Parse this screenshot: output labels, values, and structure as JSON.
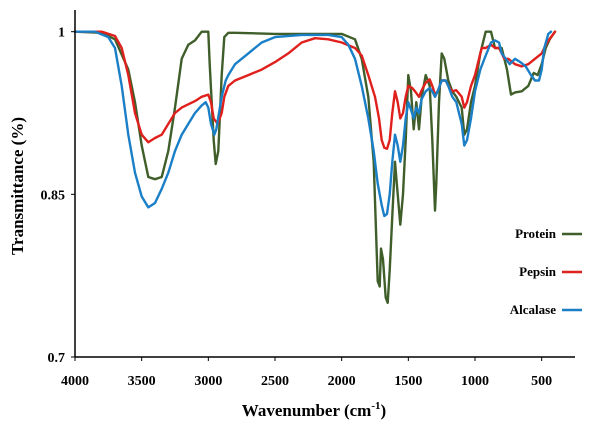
{
  "chart_data": {
    "type": "line",
    "title": "",
    "xlabel": "Wavenumber (cm",
    "xlabel_sup": "-1",
    "xlabel_tail": ")",
    "ylabel": "Transmittance (%)",
    "xlim": [
      4000,
      250
    ],
    "ylim": [
      0.7,
      1.02
    ],
    "x_ticks": [
      "4000",
      "3500",
      "3000",
      "2500",
      "2000",
      "1500",
      "1000",
      "500"
    ],
    "x_tick_values": [
      4000,
      3500,
      3000,
      2500,
      2000,
      1500,
      1000,
      500
    ],
    "y_ticks": [
      "1",
      "0.85",
      "0.7"
    ],
    "y_tick_values": [
      1.0,
      0.85,
      0.7
    ],
    "legend": {
      "position": "right"
    },
    "series": [
      {
        "name": "Protein",
        "color": "#3f5e2a",
        "points": [
          [
            4000,
            1.0
          ],
          [
            3800,
            0.999
          ],
          [
            3700,
            0.993
          ],
          [
            3600,
            0.965
          ],
          [
            3550,
            0.935
          ],
          [
            3500,
            0.895
          ],
          [
            3450,
            0.866
          ],
          [
            3400,
            0.864
          ],
          [
            3350,
            0.866
          ],
          [
            3300,
            0.89
          ],
          [
            3250,
            0.93
          ],
          [
            3200,
            0.975
          ],
          [
            3150,
            0.988
          ],
          [
            3100,
            0.992
          ],
          [
            3050,
            1.0
          ],
          [
            3000,
            1.0
          ],
          [
            2990,
            0.97
          ],
          [
            2960,
            0.9
          ],
          [
            2945,
            0.878
          ],
          [
            2925,
            0.89
          ],
          [
            2900,
            0.96
          ],
          [
            2880,
            0.995
          ],
          [
            2850,
            0.999
          ],
          [
            2800,
            0.999
          ],
          [
            2500,
            0.998
          ],
          [
            2200,
            0.998
          ],
          [
            2000,
            0.998
          ],
          [
            1900,
            0.993
          ],
          [
            1850,
            0.975
          ],
          [
            1800,
            0.94
          ],
          [
            1760,
            0.88
          ],
          [
            1730,
            0.77
          ],
          [
            1715,
            0.765
          ],
          [
            1705,
            0.8
          ],
          [
            1690,
            0.79
          ],
          [
            1670,
            0.755
          ],
          [
            1655,
            0.75
          ],
          [
            1640,
            0.78
          ],
          [
            1620,
            0.83
          ],
          [
            1600,
            0.88
          ],
          [
            1580,
            0.85
          ],
          [
            1560,
            0.822
          ],
          [
            1540,
            0.85
          ],
          [
            1520,
            0.9
          ],
          [
            1500,
            0.96
          ],
          [
            1480,
            0.945
          ],
          [
            1460,
            0.91
          ],
          [
            1440,
            0.935
          ],
          [
            1420,
            0.91
          ],
          [
            1400,
            0.94
          ],
          [
            1370,
            0.96
          ],
          [
            1340,
            0.95
          ],
          [
            1320,
            0.9
          ],
          [
            1300,
            0.835
          ],
          [
            1290,
            0.86
          ],
          [
            1270,
            0.935
          ],
          [
            1250,
            0.98
          ],
          [
            1230,
            0.975
          ],
          [
            1200,
            0.955
          ],
          [
            1170,
            0.945
          ],
          [
            1140,
            0.94
          ],
          [
            1100,
            0.93
          ],
          [
            1080,
            0.905
          ],
          [
            1060,
            0.91
          ],
          [
            1030,
            0.935
          ],
          [
            1000,
            0.95
          ],
          [
            960,
            0.98
          ],
          [
            920,
            1.0
          ],
          [
            880,
            1.0
          ],
          [
            850,
            0.985
          ],
          [
            800,
            0.985
          ],
          [
            760,
            0.965
          ],
          [
            730,
            0.942
          ],
          [
            700,
            0.944
          ],
          [
            650,
            0.945
          ],
          [
            600,
            0.95
          ],
          [
            560,
            0.962
          ],
          [
            530,
            0.96
          ],
          [
            500,
            0.97
          ],
          [
            470,
            0.985
          ],
          [
            440,
            0.993
          ],
          [
            400,
            1.0
          ]
        ]
      },
      {
        "name": "Pepsin",
        "color": "#e0201c",
        "points": [
          [
            4000,
            1.0
          ],
          [
            3800,
            1.0
          ],
          [
            3700,
            0.996
          ],
          [
            3650,
            0.985
          ],
          [
            3600,
            0.96
          ],
          [
            3550,
            0.925
          ],
          [
            3500,
            0.905
          ],
          [
            3450,
            0.898
          ],
          [
            3400,
            0.902
          ],
          [
            3350,
            0.905
          ],
          [
            3300,
            0.915
          ],
          [
            3250,
            0.925
          ],
          [
            3200,
            0.93
          ],
          [
            3150,
            0.933
          ],
          [
            3100,
            0.936
          ],
          [
            3050,
            0.94
          ],
          [
            3000,
            0.942
          ],
          [
            2980,
            0.935
          ],
          [
            2960,
            0.92
          ],
          [
            2930,
            0.915
          ],
          [
            2900,
            0.925
          ],
          [
            2880,
            0.94
          ],
          [
            2850,
            0.95
          ],
          [
            2800,
            0.955
          ],
          [
            2700,
            0.96
          ],
          [
            2600,
            0.965
          ],
          [
            2500,
            0.972
          ],
          [
            2400,
            0.98
          ],
          [
            2300,
            0.99
          ],
          [
            2200,
            0.994
          ],
          [
            2100,
            0.993
          ],
          [
            2000,
            0.99
          ],
          [
            1900,
            0.985
          ],
          [
            1850,
            0.978
          ],
          [
            1800,
            0.96
          ],
          [
            1750,
            0.94
          ],
          [
            1720,
            0.92
          ],
          [
            1700,
            0.9
          ],
          [
            1680,
            0.893
          ],
          [
            1660,
            0.892
          ],
          [
            1640,
            0.9
          ],
          [
            1620,
            0.925
          ],
          [
            1600,
            0.945
          ],
          [
            1580,
            0.935
          ],
          [
            1560,
            0.92
          ],
          [
            1540,
            0.925
          ],
          [
            1520,
            0.94
          ],
          [
            1500,
            0.95
          ],
          [
            1470,
            0.948
          ],
          [
            1450,
            0.945
          ],
          [
            1420,
            0.94
          ],
          [
            1400,
            0.946
          ],
          [
            1370,
            0.953
          ],
          [
            1340,
            0.956
          ],
          [
            1320,
            0.95
          ],
          [
            1300,
            0.942
          ],
          [
            1280,
            0.945
          ],
          [
            1250,
            0.955
          ],
          [
            1220,
            0.955
          ],
          [
            1200,
            0.95
          ],
          [
            1170,
            0.945
          ],
          [
            1140,
            0.946
          ],
          [
            1100,
            0.94
          ],
          [
            1080,
            0.93
          ],
          [
            1060,
            0.935
          ],
          [
            1030,
            0.95
          ],
          [
            1000,
            0.96
          ],
          [
            970,
            0.975
          ],
          [
            950,
            0.985
          ],
          [
            920,
            0.985
          ],
          [
            880,
            0.988
          ],
          [
            850,
            0.985
          ],
          [
            820,
            0.985
          ],
          [
            800,
            0.98
          ],
          [
            780,
            0.975
          ],
          [
            750,
            0.975
          ],
          [
            720,
            0.972
          ],
          [
            700,
            0.97
          ],
          [
            650,
            0.968
          ],
          [
            600,
            0.97
          ],
          [
            550,
            0.975
          ],
          [
            500,
            0.98
          ],
          [
            460,
            0.99
          ],
          [
            430,
            0.995
          ],
          [
            400,
            1.0
          ]
        ]
      },
      {
        "name": "Alcalase",
        "color": "#1a7fc7",
        "points": [
          [
            4000,
            1.0
          ],
          [
            3850,
            1.0
          ],
          [
            3750,
            0.995
          ],
          [
            3700,
            0.985
          ],
          [
            3650,
            0.95
          ],
          [
            3600,
            0.905
          ],
          [
            3550,
            0.87
          ],
          [
            3500,
            0.848
          ],
          [
            3450,
            0.838
          ],
          [
            3400,
            0.842
          ],
          [
            3350,
            0.855
          ],
          [
            3300,
            0.87
          ],
          [
            3250,
            0.89
          ],
          [
            3200,
            0.905
          ],
          [
            3150,
            0.915
          ],
          [
            3100,
            0.925
          ],
          [
            3050,
            0.932
          ],
          [
            3020,
            0.935
          ],
          [
            3000,
            0.93
          ],
          [
            2980,
            0.915
          ],
          [
            2955,
            0.905
          ],
          [
            2940,
            0.91
          ],
          [
            2920,
            0.925
          ],
          [
            2900,
            0.94
          ],
          [
            2870,
            0.955
          ],
          [
            2850,
            0.96
          ],
          [
            2800,
            0.97
          ],
          [
            2700,
            0.98
          ],
          [
            2600,
            0.99
          ],
          [
            2500,
            0.995
          ],
          [
            2300,
            0.997
          ],
          [
            2100,
            0.997
          ],
          [
            2000,
            0.995
          ],
          [
            1950,
            0.988
          ],
          [
            1900,
            0.975
          ],
          [
            1850,
            0.95
          ],
          [
            1800,
            0.92
          ],
          [
            1760,
            0.89
          ],
          [
            1730,
            0.86
          ],
          [
            1700,
            0.84
          ],
          [
            1680,
            0.83
          ],
          [
            1660,
            0.832
          ],
          [
            1640,
            0.85
          ],
          [
            1620,
            0.88
          ],
          [
            1600,
            0.905
          ],
          [
            1580,
            0.895
          ],
          [
            1560,
            0.88
          ],
          [
            1540,
            0.895
          ],
          [
            1520,
            0.92
          ],
          [
            1500,
            0.935
          ],
          [
            1480,
            0.928
          ],
          [
            1460,
            0.92
          ],
          [
            1440,
            0.93
          ],
          [
            1420,
            0.925
          ],
          [
            1400,
            0.938
          ],
          [
            1370,
            0.945
          ],
          [
            1340,
            0.948
          ],
          [
            1320,
            0.945
          ],
          [
            1300,
            0.94
          ],
          [
            1280,
            0.945
          ],
          [
            1250,
            0.955
          ],
          [
            1220,
            0.955
          ],
          [
            1200,
            0.95
          ],
          [
            1170,
            0.94
          ],
          [
            1140,
            0.935
          ],
          [
            1100,
            0.915
          ],
          [
            1080,
            0.895
          ],
          [
            1060,
            0.9
          ],
          [
            1030,
            0.92
          ],
          [
            1000,
            0.945
          ],
          [
            960,
            0.965
          ],
          [
            920,
            0.978
          ],
          [
            880,
            0.99
          ],
          [
            850,
            0.992
          ],
          [
            820,
            0.99
          ],
          [
            800,
            0.98
          ],
          [
            770,
            0.975
          ],
          [
            740,
            0.97
          ],
          [
            700,
            0.975
          ],
          [
            660,
            0.972
          ],
          [
            620,
            0.968
          ],
          [
            580,
            0.96
          ],
          [
            550,
            0.955
          ],
          [
            520,
            0.955
          ],
          [
            500,
            0.965
          ],
          [
            480,
            0.985
          ],
          [
            450,
            0.998
          ],
          [
            430,
            1.0
          ]
        ]
      }
    ]
  }
}
